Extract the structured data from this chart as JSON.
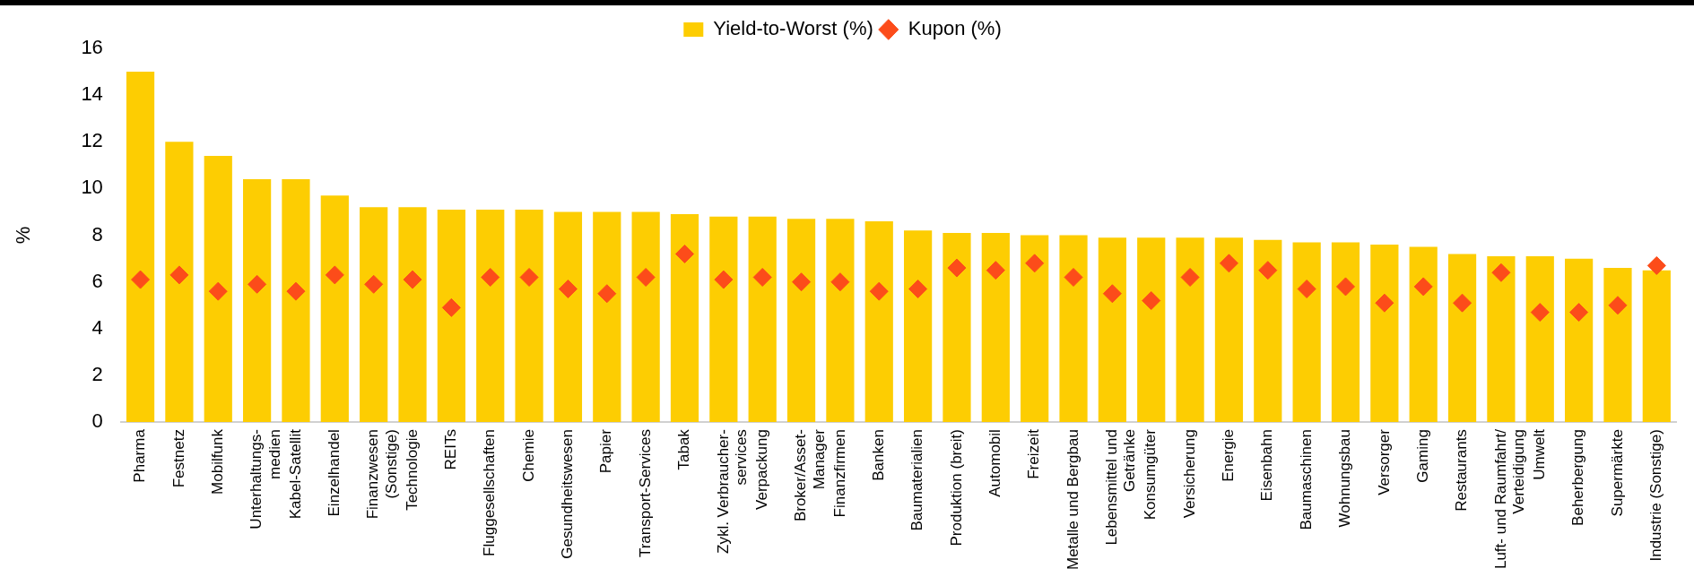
{
  "chart_data": {
    "type": "bar",
    "ylabel": "%",
    "categories": [
      "Pharma",
      "Festnetz",
      "Mobilfunk",
      "Unterhaltungs-\nmedien",
      "Kabel-Satellit",
      "Einzelhandel",
      "Finanzwesen\n(Sonstige)",
      "Technologie",
      "REITs",
      "Fluggesellschaften",
      "Chemie",
      "Gesundheitswesen",
      "Papier",
      "Transport-Services",
      "Tabak",
      "Zykl. Verbraucher-\nservices",
      "Verpackung",
      "Broker/Asset-\nManager",
      "Finanzfirmen",
      "Banken",
      "Baumaterialien",
      "Produktion (breit)",
      "Automobil",
      "Freizeit",
      "Metalle und Bergbau",
      "Lebensmittel und\nGetränke",
      "Konsumgüter",
      "Versicherung",
      "Energie",
      "Eisenbahn",
      "Baumaschinen",
      "Wohnungsbau",
      "Versorger",
      "Gaming",
      "Restaurants",
      "Luft- und Raumfahrt/\nVerteidigung",
      "Umwelt",
      "Beherbergung",
      "Supermärkte",
      "Industrie (Sonstige)"
    ],
    "series": [
      {
        "name": "Yield-to-Worst (%)",
        "color": "#fdcd02",
        "values": [
          15.0,
          12.0,
          11.4,
          10.4,
          10.4,
          9.7,
          9.2,
          9.2,
          9.1,
          9.1,
          9.1,
          9.0,
          9.0,
          9.0,
          8.9,
          8.8,
          8.8,
          8.7,
          8.7,
          8.6,
          8.2,
          8.1,
          8.1,
          8.0,
          8.0,
          7.9,
          7.9,
          7.9,
          7.9,
          7.8,
          7.7,
          7.7,
          7.6,
          7.5,
          7.2,
          7.1,
          7.1,
          7.0,
          6.6,
          6.5
        ]
      },
      {
        "name": "Kupon (%)",
        "type": "scatter",
        "marker": "diamond",
        "color": "#fc4c1a",
        "values": [
          6.1,
          6.3,
          5.6,
          5.9,
          5.6,
          6.3,
          5.9,
          6.1,
          4.9,
          6.2,
          6.2,
          5.7,
          5.5,
          6.2,
          7.2,
          6.1,
          6.2,
          6.0,
          6.0,
          5.6,
          5.7,
          6.6,
          6.5,
          6.8,
          6.2,
          5.5,
          5.2,
          6.2,
          6.8,
          6.5,
          5.7,
          5.8,
          5.1,
          5.8,
          5.1,
          6.4,
          4.7,
          4.7,
          5.0,
          6.7
        ]
      }
    ],
    "ylim": [
      0,
      16
    ],
    "yticks": [
      0,
      2,
      4,
      6,
      8,
      10,
      12,
      14,
      16
    ],
    "grid": false,
    "legend": "top"
  }
}
